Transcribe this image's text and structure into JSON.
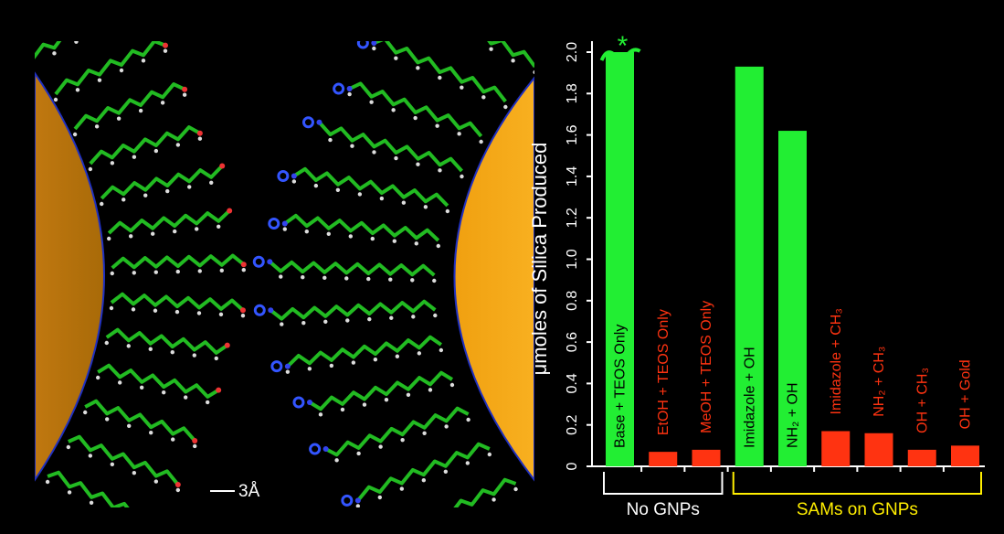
{
  "illustration": {
    "scale_label": "3Å"
  },
  "chart_data": {
    "type": "bar",
    "y_label": "μmoles of Silica Produced",
    "annotation": "*",
    "categories": [
      "Base + TEOS Only",
      "EtOH + TEOS Only",
      "MeOH + TEOS Only",
      "Imidazole + OH",
      "NH₂ + OH",
      "Imidazole + CH₃",
      "NH₂ + CH₃",
      "OH + CH₃",
      "OH + Gold"
    ],
    "values": [
      2.0,
      0.07,
      0.08,
      1.93,
      1.62,
      0.17,
      0.16,
      0.08,
      0.1
    ],
    "colors": [
      "#22ee33",
      "#ff3311",
      "#ff3311",
      "#22ee33",
      "#22ee33",
      "#ff3311",
      "#ff3311",
      "#ff3311",
      "#ff3311"
    ],
    "ylim": [
      0,
      2.0
    ],
    "yticks": [
      0,
      0.2,
      0.4,
      0.6,
      0.8,
      {
        "value": 1.0,
        "label": "1.0"
      },
      1.2,
      1.4,
      1.6,
      1.8,
      {
        "value": 2.0,
        "label": "2.0"
      }
    ],
    "groups": [
      {
        "label": "No GNPs",
        "count": 3,
        "color": "#ffffff"
      },
      {
        "label": "SAMs on GNPs",
        "count": 6,
        "color": "#ffee00"
      }
    ]
  }
}
